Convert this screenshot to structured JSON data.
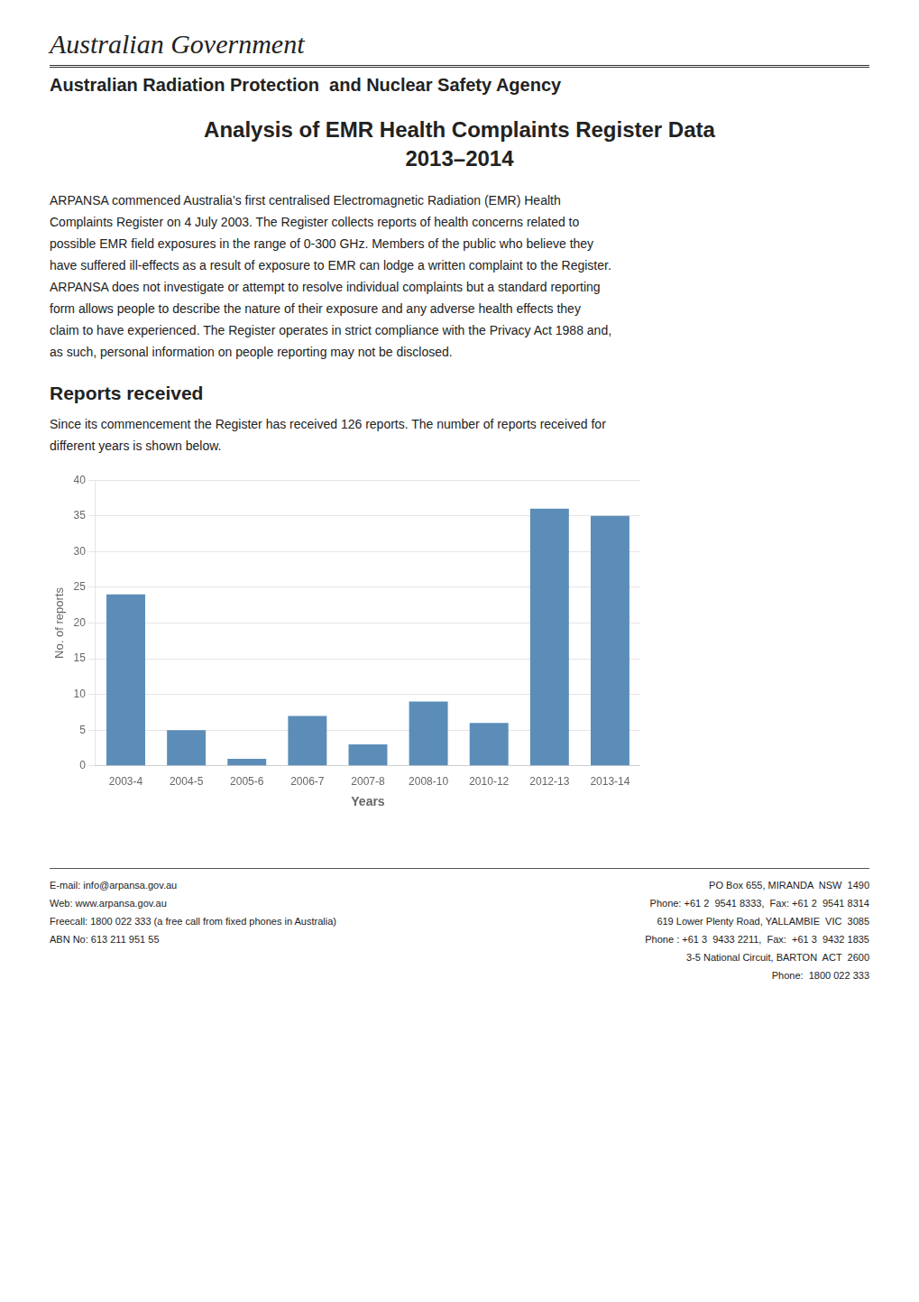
{
  "chart_data": {
    "type": "bar",
    "title": "Analysis of EMR Health Complaints Register Data",
    "subtitle": "2013–2014",
    "annotations": [
      "Australian Government",
      "Australian Radiation Protection  and Nuclear Safety Agency",
      "ARPANSA commenced Australia’s first centralised Electromagnetic Radiation (EMR) Health",
      "Complaints Register on 4 July 2003. The Register collects reports of health concerns related to",
      "possible EMR field exposures in the range of 0-300 GHz. Members of the public who believe they",
      "have suffered ill-effects as a result of exposure to EMR can lodge a written complaint to the Register.",
      "ARPANSA does not investigate or attempt to resolve individual complaints but a standard reporting",
      "form allows people to describe the nature of their exposure and any adverse health effects they",
      "claim to have experienced. The Register operates in strict compliance with the Privacy Act 1988 and,",
      "as such, personal information on people reporting may not be disclosed.",
      "Reports received",
      "Since its commencement the Register has received 126 reports. The number of reports received for",
      "different years is shown below.",
      "E-mail: info@arpansa.gov.au",
      "Web: www.arpansa.gov.au",
      "Freecall: 1800 022 333 (a free call from fixed phones in Australia)",
      "ABN No: 613 211 951 55",
      "PO Box 655, MIRANDA  NSW  1490",
      "Phone: +61 2  9541 8333,  Fax: +61 2  9541 8314",
      "619 Lower Plenty Road, YALLAMBIE  VIC  3085",
      "Phone : +61 3  9433 2211,  Fax:  +61 3  9432 1835",
      "3-5 National Circuit, BARTON  ACT  2600",
      "Phone:  1800 022 333"
    ],
    "categories": [
      "2003-4",
      "2004-5",
      "2005-6",
      "2006-7",
      "2007-8",
      "2008-10",
      "2010-12",
      "2012-13",
      "2013-14"
    ],
    "values": [
      24,
      5,
      1,
      7,
      3,
      9,
      6,
      36,
      35
    ],
    "color": "#5B8DB8",
    "xlabel": "Years",
    "ylabel": "No. of reports",
    "ylim": [
      0,
      40
    ],
    "yticks": [
      0,
      5,
      10,
      15,
      20,
      25,
      30,
      35,
      40
    ],
    "grid": true
  }
}
